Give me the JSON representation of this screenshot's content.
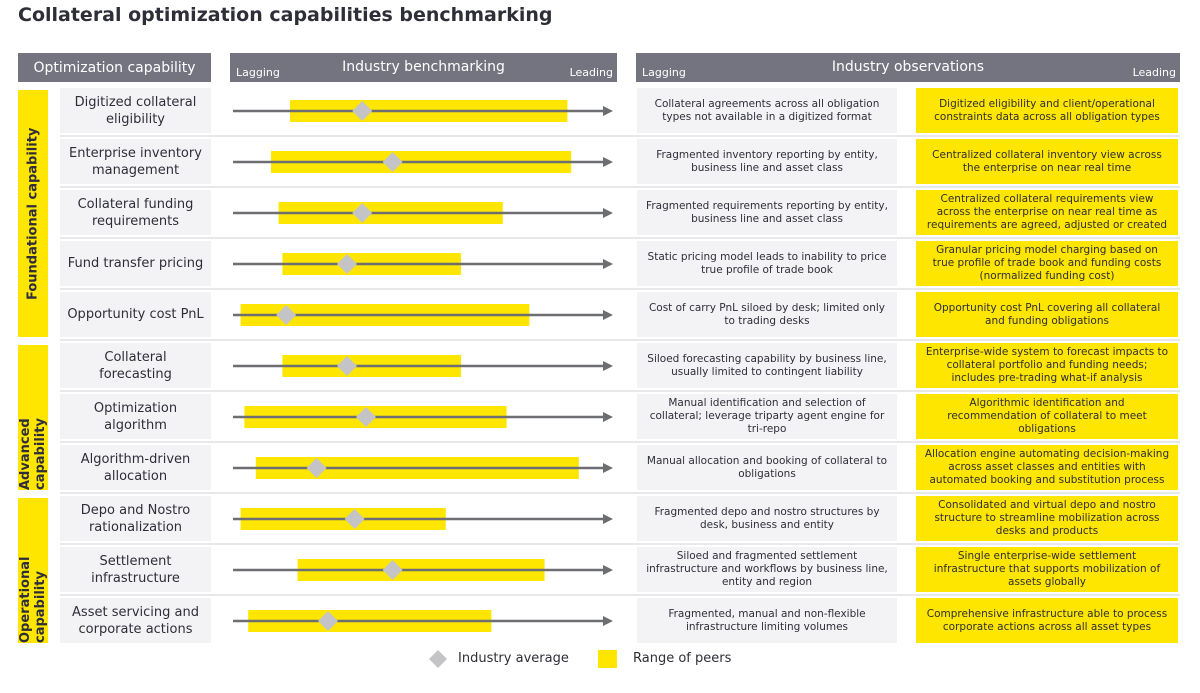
{
  "chart_data": {
    "type": "range",
    "title": "Collateral optimization capabilities benchmarking",
    "headers": {
      "capability": "Optimization capability",
      "benchmarking": "Industry benchmarking",
      "observations": "Industry observations"
    },
    "low_label": "Lagging",
    "high_label": "Leading",
    "xlim": [
      0,
      100
    ],
    "groups": [
      {
        "name": "Foundational capability",
        "categories": [
          "Digitized collateral eligibility",
          "Enterprise inventory management",
          "Collateral funding requirements",
          "Fund transfer pricing",
          "Opportunity cost PnL"
        ]
      },
      {
        "name": "Advanced capability",
        "categories": [
          "Collateral forecasting",
          "Optimization algorithm",
          "Algorithm-driven allocation"
        ]
      },
      {
        "name": "Operational capability",
        "categories": [
          "Depo and Nostro rationalization",
          "Settlement infrastructure",
          "Asset servicing and corporate actions"
        ]
      }
    ],
    "series": [
      {
        "name": "Range of peers",
        "color": "#ffe600",
        "low": [
          15,
          10,
          12,
          13,
          2,
          13,
          3,
          6,
          2,
          17,
          4
        ],
        "high": [
          88,
          89,
          71,
          60,
          78,
          60,
          72,
          91,
          56,
          82,
          68
        ]
      },
      {
        "name": "Industry average",
        "color": "#c4c4c6",
        "values": [
          34,
          42,
          34,
          30,
          14,
          30,
          35,
          22,
          32,
          42,
          25
        ]
      }
    ],
    "observations_lagging": [
      "Collateral agreements across all obligation types not available in a digitized format",
      "Fragmented inventory reporting by entity, business line and asset class",
      "Fragmented requirements reporting by entity, business line and asset class",
      "Static pricing model leads to inability to price true profile of trade book",
      "Cost of carry PnL siloed by desk; limited only to trading desks",
      "Siloed forecasting capability by business line, usually limited to contingent liability",
      "Manual identification and selection of collateral; leverage triparty agent engine for tri-repo",
      "Manual allocation and booking of collateral to obligations",
      "Fragmented depo and nostro structures by desk, business and entity",
      "Siloed and fragmented settlement infrastructure and workflows by business line, entity and region",
      "Fragmented, manual and non-flexible infrastructure limiting volumes"
    ],
    "observations_leading": [
      "Digitized eligibility and client/operational constraints data across all obligation types",
      "Centralized collateral inventory view across the enterprise on near real time",
      "Centralized collateral requirements view across the enterprise on near real time as requirements are agreed, adjusted or created",
      "Granular pricing model charging based on true profile of trade book and funding costs (normalized funding cost)",
      "Opportunity cost PnL covering all collateral and funding obligations",
      "Enterprise-wide system to forecast impacts to collateral portfolio and funding needs; includes pre-trading what-if analysis",
      "Algorithmic identification and recommendation of collateral to meet obligations",
      "Allocation engine automating decision-making across asset classes and entities with automated booking and substitution process",
      "Consolidated and virtual depo and nostro structure to streamline mobilization across desks and products",
      "Single enterprise-wide settlement infrastructure that supports mobilization of assets globally",
      "Comprehensive infrastructure able to process corporate actions across all asset types"
    ]
  }
}
